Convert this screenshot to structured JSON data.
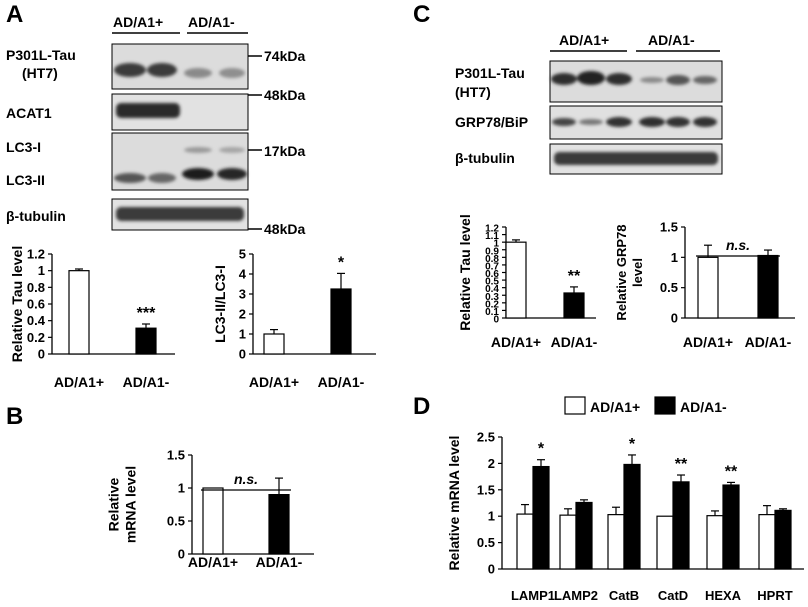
{
  "panels": {
    "A": {
      "letter": "A",
      "groups": [
        "AD/A1+",
        "AD/A1-"
      ],
      "blots": [
        {
          "label": "P301L-Tau\n(HT7)",
          "marker": "74kDa"
        },
        {
          "label": "ACAT1",
          "marker": "48kDa"
        },
        {
          "label": "LC3-I",
          "sublabel": "LC3-II",
          "marker": "17kDa"
        },
        {
          "label": "β-tubulin",
          "marker": "48kDa"
        }
      ]
    },
    "B": {
      "letter": "B"
    },
    "C": {
      "letter": "C",
      "groups": [
        "AD/A1+",
        "AD/A1-"
      ],
      "blots": [
        {
          "label": "P301L-Tau\n(HT7)"
        },
        {
          "label": "GRP78/BiP"
        },
        {
          "label": "β-tubulin"
        }
      ]
    },
    "D": {
      "letter": "D"
    }
  },
  "chart_data": [
    {
      "id": "A-tau",
      "type": "bar",
      "categories": [
        "AD/A1+",
        "AD/A1-"
      ],
      "values": [
        1.0,
        0.31
      ],
      "errors": [
        0.02,
        0.05
      ],
      "colors": [
        "#ffffff",
        "#000000"
      ],
      "ylabel": "Relative Tau level",
      "xlabel": "",
      "ylim": [
        0,
        1.2
      ],
      "yticks": [
        "0",
        "0.2",
        "0.4",
        "0.6",
        "0.8",
        "1",
        "1.2"
      ],
      "significance": [
        "",
        "***"
      ]
    },
    {
      "id": "A-lc3",
      "type": "bar",
      "categories": [
        "AD/A1+",
        "AD/A1-"
      ],
      "values": [
        1.0,
        3.25
      ],
      "errors": [
        0.22,
        0.78
      ],
      "colors": [
        "#ffffff",
        "#000000"
      ],
      "ylabel": "LC3-II/LC3-I",
      "xlabel": "",
      "ylim": [
        0,
        5
      ],
      "yticks": [
        "0",
        "1",
        "2",
        "3",
        "4",
        "5"
      ],
      "significance": [
        "",
        "*"
      ]
    },
    {
      "id": "B-mrna",
      "type": "bar",
      "categories": [
        "AD/A1+",
        "AD/A1-"
      ],
      "values": [
        1.0,
        0.9
      ],
      "errors": [
        0,
        0.25
      ],
      "colors": [
        "#ffffff",
        "#000000"
      ],
      "ylabel": "Relative\nmRNA level",
      "xlabel": "",
      "ylim": [
        0,
        1.5
      ],
      "yticks": [
        "0",
        "0.5",
        "1",
        "1.5"
      ],
      "bracket": "n.s."
    },
    {
      "id": "C-tau",
      "type": "bar",
      "categories": [
        "AD/A1+",
        "AD/A1-"
      ],
      "values": [
        1.0,
        0.33
      ],
      "errors": [
        0.03,
        0.08
      ],
      "colors": [
        "#ffffff",
        "#000000"
      ],
      "ylabel": "Relative Tau level",
      "xlabel": "",
      "ylim": [
        0,
        1.2
      ],
      "yticks": [
        "0",
        "0.1",
        "0.2",
        "0.3",
        "0.4",
        "0.5",
        "0.6",
        "0.7",
        "0.8",
        "0.9",
        "1",
        "1.1",
        "1.2"
      ],
      "significance": [
        "",
        "**"
      ]
    },
    {
      "id": "C-grp78",
      "type": "bar",
      "categories": [
        "AD/A1+",
        "AD/A1-"
      ],
      "values": [
        1.0,
        1.03
      ],
      "errors": [
        0.2,
        0.09
      ],
      "colors": [
        "#ffffff",
        "#000000"
      ],
      "ylabel": "Relative GRP78\nlevel",
      "xlabel": "",
      "ylim": [
        0,
        1.5
      ],
      "yticks": [
        "0",
        "0.5",
        "1",
        "1.5"
      ],
      "bracket": "n.s."
    },
    {
      "id": "D-lyso",
      "type": "bar",
      "categories": [
        "LAMP1",
        "LAMP2",
        "CatB",
        "CatD",
        "HEXA",
        "HPRT"
      ],
      "series": [
        {
          "name": "AD/A1+",
          "color": "#ffffff",
          "values": [
            1.04,
            1.02,
            1.03,
            1.0,
            1.01,
            1.03
          ],
          "errors": [
            0.18,
            0.12,
            0.14,
            0.0,
            0.09,
            0.17
          ]
        },
        {
          "name": "AD/A1-",
          "color": "#000000",
          "values": [
            1.94,
            1.26,
            1.98,
            1.65,
            1.59,
            1.11
          ],
          "errors": [
            0.13,
            0.05,
            0.18,
            0.13,
            0.05,
            0.03
          ]
        }
      ],
      "significance": [
        "*",
        "",
        "*",
        "**",
        "**",
        ""
      ],
      "ylabel": "Relative mRNA level",
      "xlabel": "",
      "ylim": [
        0,
        2.5
      ],
      "yticks": [
        "0",
        "0.5",
        "1",
        "1.5",
        "2",
        "2.5"
      ],
      "legend": "top"
    }
  ]
}
